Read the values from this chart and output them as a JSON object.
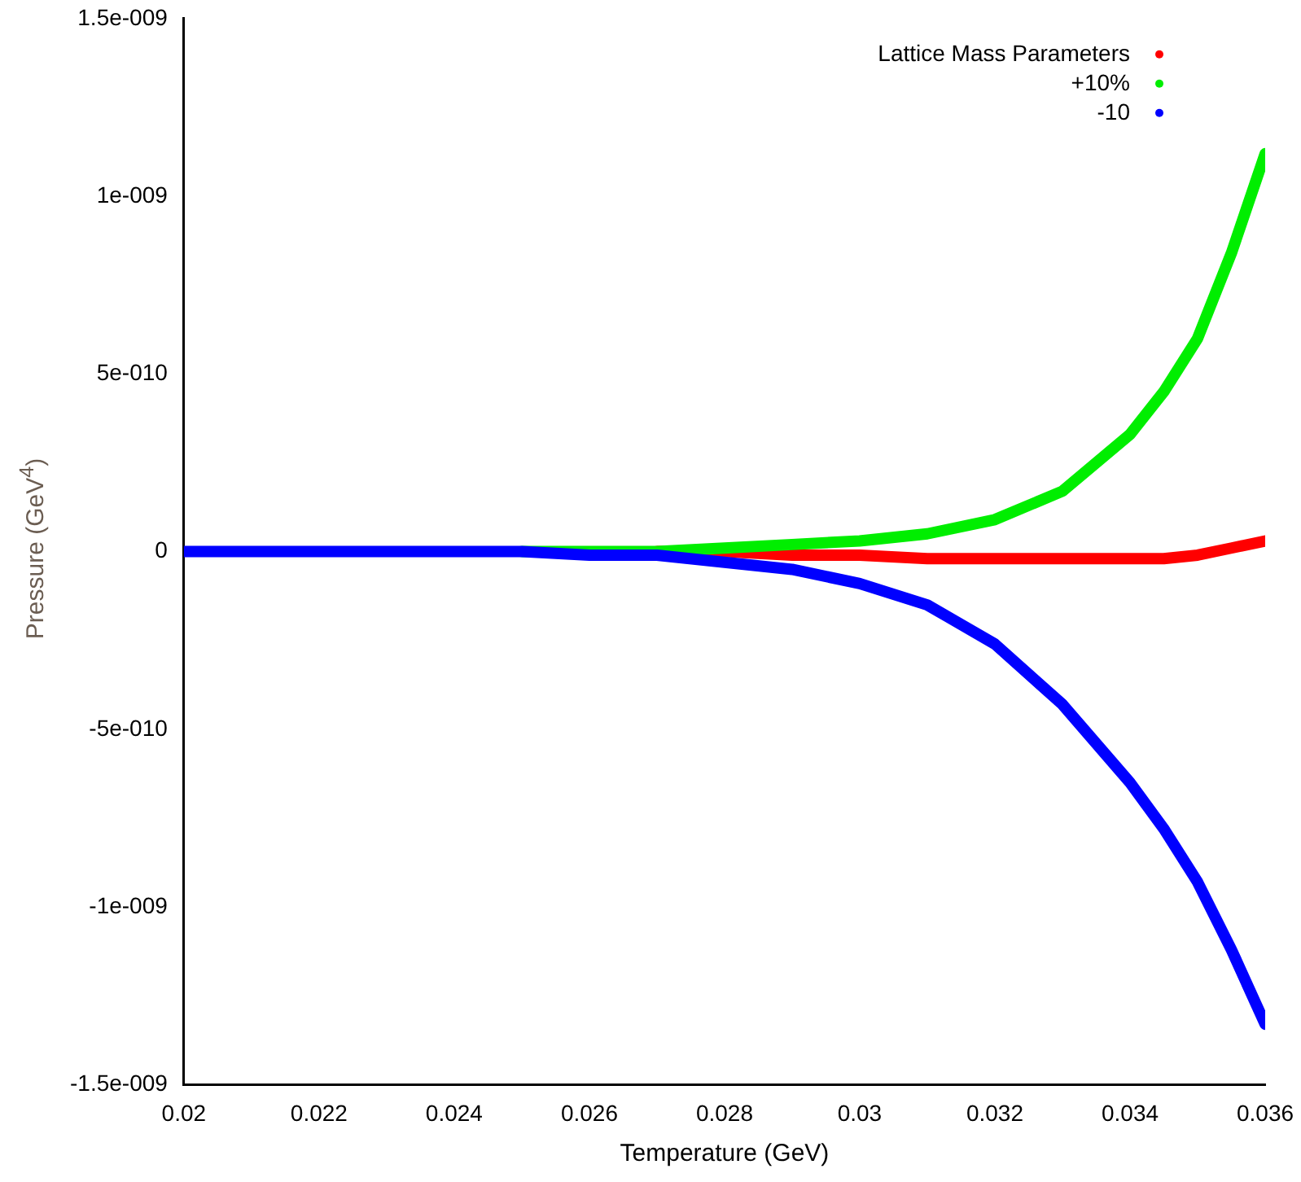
{
  "chart_data": {
    "type": "line",
    "xlabel": "Temperature (GeV)",
    "ylabel": "Pressure (GeV$^{4}$)",
    "x": [
      0.02,
      0.021,
      0.022,
      0.023,
      0.024,
      0.025,
      0.026,
      0.027,
      0.028,
      0.029,
      0.03,
      0.031,
      0.032,
      0.033,
      0.034,
      0.0345,
      0.035,
      0.0355,
      0.036
    ],
    "series": [
      {
        "name": "Lattice Mass Parameters",
        "color": "#ff0000",
        "values": [
          null,
          null,
          null,
          null,
          null,
          null,
          null,
          0,
          0,
          -1e-11,
          -1e-11,
          -2e-11,
          -2e-11,
          -2e-11,
          -2e-11,
          -2e-11,
          -1e-11,
          1e-11,
          3e-11
        ]
      },
      {
        "name": "+10%",
        "color": "#00ee00",
        "values": [
          null,
          null,
          null,
          null,
          null,
          0,
          0,
          0,
          1e-11,
          2e-11,
          3e-11,
          5e-11,
          9e-11,
          1.7e-10,
          3.3e-10,
          4.5e-10,
          6e-10,
          8.4e-10,
          1.12e-09
        ]
      },
      {
        "name": "-10",
        "color": "#0000ff",
        "values": [
          0,
          0,
          0,
          0,
          0,
          0,
          -1e-11,
          -1e-11,
          -3e-11,
          -5e-11,
          -9e-11,
          -1.5e-10,
          -2.6e-10,
          -4.3e-10,
          -6.5e-10,
          -7.8e-10,
          -9.3e-10,
          -1.12e-09,
          -1.33e-09
        ]
      }
    ],
    "xlim": [
      0.02,
      0.036
    ],
    "xticks": [
      0.02,
      0.022,
      0.024,
      0.026,
      0.028,
      0.03,
      0.032,
      0.034,
      0.036
    ],
    "ylim": [
      -1.5e-09,
      1.5e-09
    ],
    "yticks": [
      {
        "value": -1.5e-09,
        "label": "-1.5e-009"
      },
      {
        "value": -1e-09,
        "label": "-1e-009"
      },
      {
        "value": -5e-10,
        "label": "-5e-010"
      },
      {
        "value": 0,
        "label": "0"
      },
      {
        "value": 5e-10,
        "label": "5e-010"
      },
      {
        "value": 1e-09,
        "label": "1e-009"
      },
      {
        "value": 1.5e-09,
        "label": "1.5e-009"
      }
    ],
    "grid": false,
    "legend": "top right",
    "marker": "none",
    "line_style": "solid"
  }
}
